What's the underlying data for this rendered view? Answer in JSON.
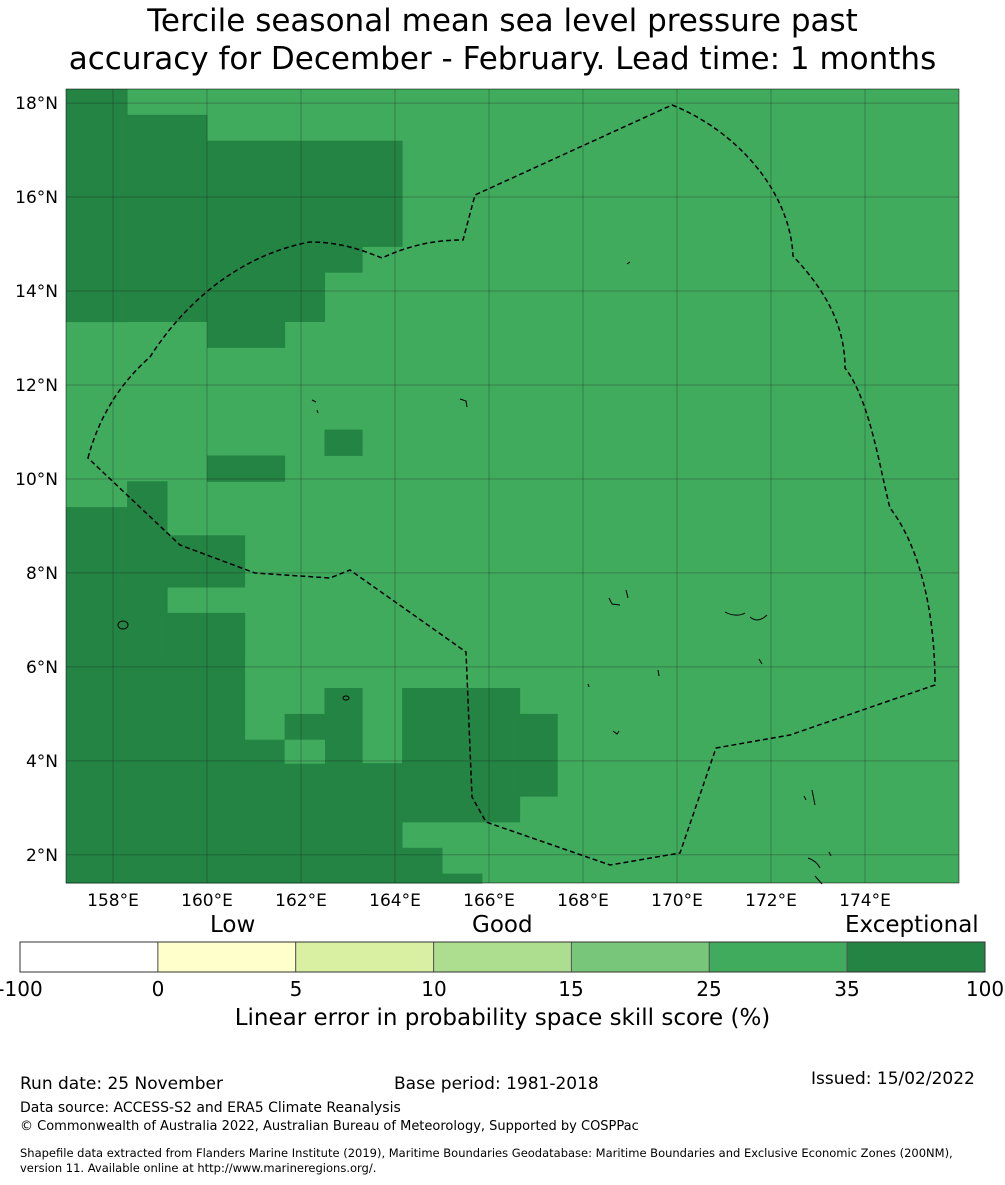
{
  "title": {
    "line1": "Tercile seasonal mean sea level pressure past",
    "line2": "accuracy for December - February. Lead time: 1 months"
  },
  "map": {
    "lat_range": [
      1.4,
      18.3
    ],
    "lon_range": [
      157.0,
      176.0
    ],
    "lat_ticks": [
      {
        "value": 18,
        "label": "18°N"
      },
      {
        "value": 16,
        "label": "16°N"
      },
      {
        "value": 14,
        "label": "14°N"
      },
      {
        "value": 12,
        "label": "12°N"
      },
      {
        "value": 10,
        "label": "10°N"
      },
      {
        "value": 8,
        "label": "8°N"
      },
      {
        "value": 6,
        "label": "6°N"
      },
      {
        "value": 4,
        "label": "4°N"
      },
      {
        "value": 2,
        "label": "2°N"
      }
    ],
    "lon_ticks": [
      {
        "value": 158,
        "label": "158°E"
      },
      {
        "value": 160,
        "label": "160°E"
      },
      {
        "value": 162,
        "label": "162°E"
      },
      {
        "value": 164,
        "label": "164°E"
      },
      {
        "value": 166,
        "label": "166°E"
      },
      {
        "value": 168,
        "label": "168°E"
      },
      {
        "value": 170,
        "label": "170°E"
      },
      {
        "value": 172,
        "label": "172°E"
      },
      {
        "value": 174,
        "label": "174°E"
      }
    ],
    "base_category": "25-35",
    "exceptional_regions": [
      {
        "lon": [
          157.0,
          158.3
        ],
        "lat": [
          13.35,
          18.3
        ]
      },
      {
        "lon": [
          158.3,
          160.0
        ],
        "lat": [
          13.35,
          17.75
        ]
      },
      {
        "lon": [
          160.0,
          164.15
        ],
        "lat": [
          14.95,
          17.2
        ]
      },
      {
        "lon": [
          160.0,
          163.3
        ],
        "lat": [
          14.4,
          14.95
        ]
      },
      {
        "lon": [
          160.0,
          162.5
        ],
        "lat": [
          13.35,
          14.4
        ]
      },
      {
        "lon": [
          160.0,
          161.65
        ],
        "lat": [
          12.8,
          13.35
        ]
      },
      {
        "lon": [
          162.5,
          163.3
        ],
        "lat": [
          10.5,
          11.05
        ]
      },
      {
        "lon": [
          160.0,
          161.65
        ],
        "lat": [
          9.95,
          10.5
        ]
      },
      {
        "lon": [
          158.3,
          159.15
        ],
        "lat": [
          8.8,
          9.95
        ]
      },
      {
        "lon": [
          157.0,
          158.3
        ],
        "lat": [
          7.7,
          9.4
        ]
      },
      {
        "lon": [
          158.3,
          160.8
        ],
        "lat": [
          7.7,
          8.8
        ]
      },
      {
        "lon": [
          157.0,
          159.15
        ],
        "lat": [
          6.15,
          7.7
        ]
      },
      {
        "lon": [
          159.15,
          160.8
        ],
        "lat": [
          6.15,
          7.15
        ]
      },
      {
        "lon": [
          157.0,
          160.8
        ],
        "lat": [
          1.4,
          6.15
        ]
      },
      {
        "lon": [
          160.8,
          161.65
        ],
        "lat": [
          1.4,
          4.45
        ]
      },
      {
        "lon": [
          160.8,
          162.5
        ],
        "lat": [
          1.4,
          3.95
        ]
      },
      {
        "lon": [
          161.65,
          162.5
        ],
        "lat": [
          4.45,
          5.0
        ]
      },
      {
        "lon": [
          162.5,
          163.3
        ],
        "lat": [
          1.4,
          5.55
        ]
      },
      {
        "lon": [
          163.3,
          164.15
        ],
        "lat": [
          1.4,
          3.95
        ]
      },
      {
        "lon": [
          164.15,
          166.65
        ],
        "lat": [
          2.7,
          5.55
        ]
      },
      {
        "lon": [
          166.65,
          167.45
        ],
        "lat": [
          3.25,
          5.0
        ]
      },
      {
        "lon": [
          164.15,
          165.0
        ],
        "lat": [
          1.4,
          2.15
        ]
      },
      {
        "lon": [
          165.0,
          165.85
        ],
        "lat": [
          1.4,
          1.6
        ]
      }
    ],
    "light_cells": [
      {
        "lon": [
          161.65,
          162.5
        ],
        "lat": [
          3.95,
          4.45
        ]
      }
    ]
  },
  "colorbar": {
    "categories": [
      "Low",
      "Good",
      "Exceptional"
    ],
    "segments": [
      {
        "from": "-100",
        "to": "0",
        "color": "#ffffff"
      },
      {
        "from": "0",
        "to": "5",
        "color": "#ffffcc"
      },
      {
        "from": "5",
        "to": "10",
        "color": "#d9f0a3"
      },
      {
        "from": "10",
        "to": "15",
        "color": "#addd8e"
      },
      {
        "from": "15",
        "to": "25",
        "color": "#78c679"
      },
      {
        "from": "25",
        "to": "35",
        "color": "#41ab5d"
      },
      {
        "from": "35",
        "to": "100",
        "color": "#238443"
      }
    ],
    "ticks": [
      "-100",
      "0",
      "5",
      "10",
      "15",
      "25",
      "35",
      "100"
    ],
    "title": "Linear error in probability space skill score (%)"
  },
  "footer": {
    "run_date": "Run date: 25 November",
    "base_period": "Base period: 1981-2018",
    "issued": "Issued: 15/02/2022",
    "data_source": "Data source: ACCESS-S2 and ERA5 Climate Reanalysis",
    "copyright": "© Commonwealth of Australia 2022, Australian Bureau of Meteorology, Supported by COSPPac",
    "shapefile_line1": "Shapefile data extracted from Flanders Marine Institute (2019), Maritime Boundaries Geodatabase: Maritime Boundaries and Exclusive Economic Zones (200NM),",
    "shapefile_line2": "version 11. Available online at http://www.marineregions.org/."
  }
}
